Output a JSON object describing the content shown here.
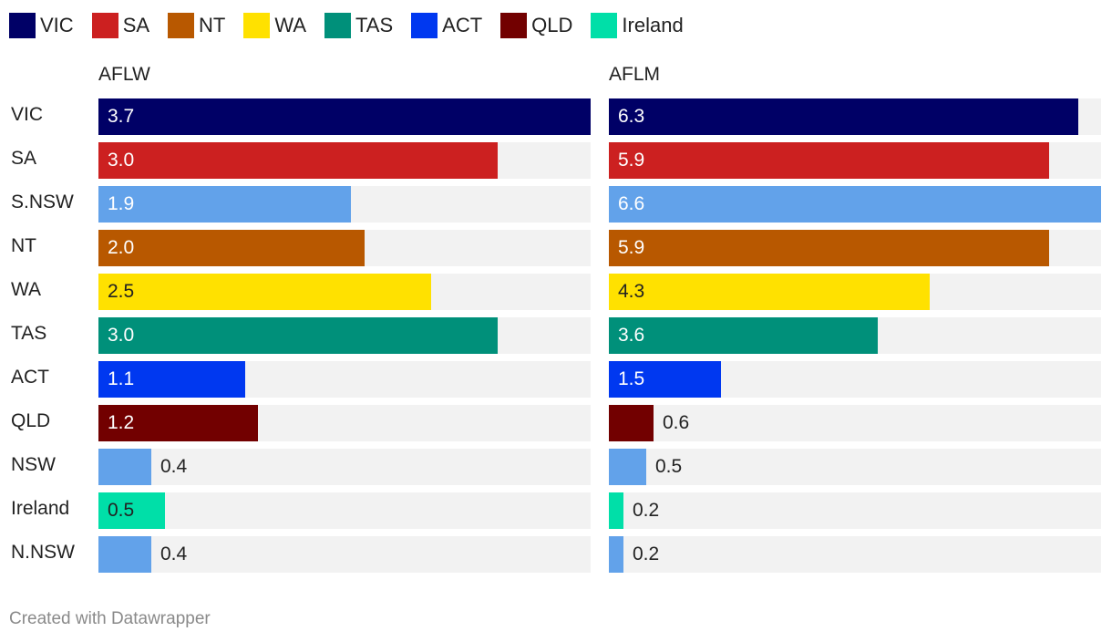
{
  "legend": [
    {
      "label": "VIC",
      "color": "#000066"
    },
    {
      "label": "SA",
      "color": "#cc2020"
    },
    {
      "label": "NT",
      "color": "#b85800"
    },
    {
      "label": "WA",
      "color": "#ffe100"
    },
    {
      "label": "TAS",
      "color": "#00907a"
    },
    {
      "label": "ACT",
      "color": "#0038f0"
    },
    {
      "label": "QLD",
      "color": "#720000"
    },
    {
      "label": "Ireland",
      "color": "#00dfa8"
    }
  ],
  "chart_data": {
    "type": "bar",
    "orientation": "horizontal",
    "categories": [
      "VIC",
      "SA",
      "S.NSW",
      "NT",
      "WA",
      "TAS",
      "ACT",
      "QLD",
      "NSW",
      "Ireland",
      "N.NSW"
    ],
    "bar_colors": [
      "#000066",
      "#cc2020",
      "#62a2ea",
      "#b85800",
      "#ffe100",
      "#00907a",
      "#0038f0",
      "#720000",
      "#62a2ea",
      "#00dfa8",
      "#62a2ea"
    ],
    "label_colors": [
      "#ffffff",
      "#ffffff",
      "#ffffff",
      "#ffffff",
      "#222222",
      "#ffffff",
      "#ffffff",
      "#ffffff",
      "#ffffff",
      "#222222",
      "#ffffff"
    ],
    "series": [
      {
        "name": "AFLW",
        "values": [
          3.7,
          3.0,
          1.9,
          2.0,
          2.5,
          3.0,
          1.1,
          1.2,
          0.4,
          0.5,
          0.4
        ],
        "value_labels": [
          "3.7",
          "3.0",
          "1.9",
          "2.0",
          "2.5",
          "3.0",
          "1.1",
          "1.2",
          "0.4",
          "0.5",
          "0.4"
        ],
        "xlim": [
          0,
          3.7
        ]
      },
      {
        "name": "AFLM",
        "values": [
          6.3,
          5.9,
          6.6,
          5.9,
          4.3,
          3.6,
          1.5,
          0.6,
          0.5,
          0.2,
          0.2
        ],
        "value_labels": [
          "6.3",
          "5.9",
          "6.6",
          "5.9",
          "4.3",
          "3.6",
          "1.5",
          "0.6",
          "0.5",
          "0.2",
          "0.2"
        ],
        "xlim": [
          0,
          6.6
        ]
      }
    ],
    "legend_placement": "top-left",
    "grid": false
  },
  "footer": "Created with Datawrapper"
}
